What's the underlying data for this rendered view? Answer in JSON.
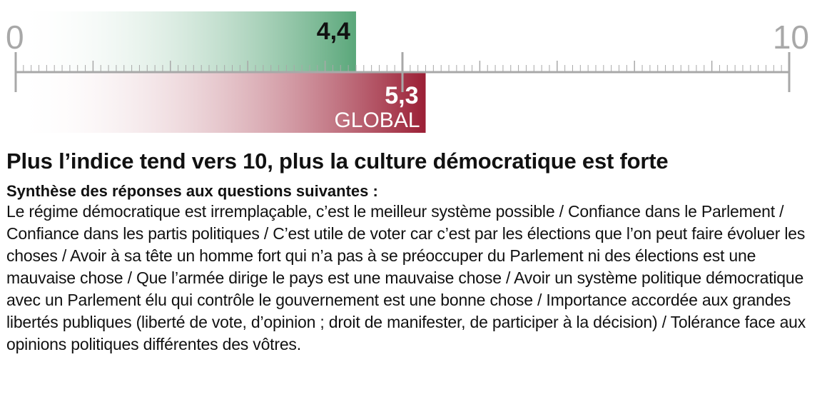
{
  "chart_data": {
    "type": "bar",
    "orientation": "horizontal",
    "xlim": [
      0,
      10
    ],
    "tick_labels": [
      "0",
      "10"
    ],
    "series": [
      {
        "value": 4.4,
        "label": "4,4",
        "sublabel": "",
        "color": "#5aa77a"
      },
      {
        "value": 5.3,
        "label": "5,3",
        "sublabel": "GLOBAL",
        "color": "#9b1f35"
      }
    ]
  },
  "text": {
    "headline": "Plus l’indice tend vers 10, plus la culture démocratique est forte",
    "subheading": "Synthèse des réponses aux questions suivantes :",
    "body": "Le régime démocratique est irremplaçable, c’est le meilleur système possible / Confiance dans le Parlement / Confiance dans les partis politiques / C’est utile de voter car c’est par les élections que l’on peut faire évoluer les choses / Avoir à sa tête un homme fort qui n’a pas à se préoccuper du Parlement ni des élections est une mauvaise chose / Que l’armée dirige le pays est une mauvaise chose / Avoir un système politique démocratique avec un Parlement élu qui contrôle le gouvernement est une bonne chose / Importance accordée aux grandes libertés publiques (liberté de vote, d’opinion ; droit de manifester, de participer à la décision) / Tolérance face aux opinions politiques différentes des vôtres."
  }
}
